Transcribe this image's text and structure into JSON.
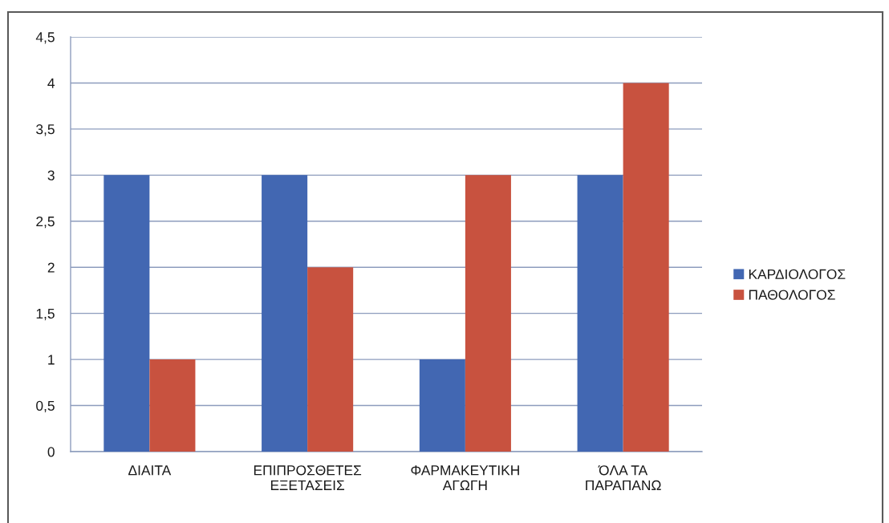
{
  "chart_data": {
    "type": "bar",
    "categories": [
      "ΔΙΑΙΤΑ",
      "ΕΠΙΠΡΟΣΘΕΤΕΣ\nΕΞΕΤΑΣΕΙΣ",
      "ΦΑΡΜΑΚΕΥΤΙΚΗ\nΑΓΩΓΗ",
      "ΌΛΑ ΤΑ\nΠΑΡΑΠΑΝΩ"
    ],
    "series": [
      {
        "name": "ΚΑΡΔΙΟΛΟΓΟΣ",
        "color": "#4267b2",
        "values": [
          3,
          3,
          1,
          3
        ]
      },
      {
        "name": "ΠΑΘΟΛΟΓΟΣ",
        "color": "#c8523f",
        "values": [
          1,
          2,
          3,
          4
        ]
      }
    ],
    "ylim": [
      0,
      4.5
    ],
    "yticks": [
      0,
      {
        "value": 0.5,
        "label": "0,5"
      },
      1,
      {
        "value": 1.5,
        "label": "1,5"
      },
      2,
      {
        "value": 2.5,
        "label": "2,5"
      },
      3,
      {
        "value": 3.5,
        "label": "3,5"
      },
      4,
      {
        "value": 4.5,
        "label": "4,5"
      }
    ],
    "grid": "y",
    "legend": "right"
  }
}
